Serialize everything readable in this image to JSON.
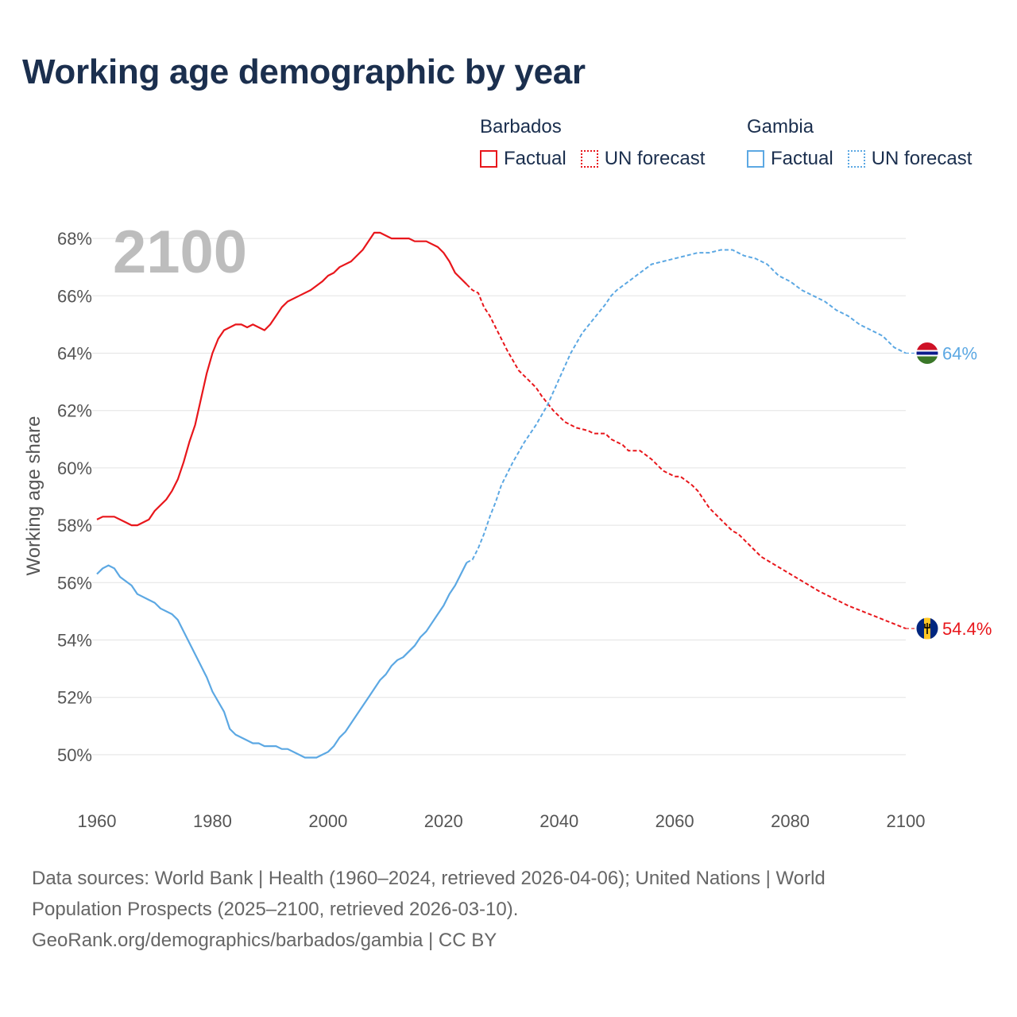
{
  "header": {
    "title": "Working age demographic by year"
  },
  "legend": {
    "groups": [
      {
        "name": "Barbados",
        "factual_label": "Factual",
        "forecast_label": "UN forecast",
        "color": "#e8161b"
      },
      {
        "name": "Gambia",
        "factual_label": "Factual",
        "forecast_label": "UN forecast",
        "color": "#5ca8e3"
      }
    ]
  },
  "footer": {
    "line1": "Data sources: World Bank | Health (1960–2024, retrieved 2026-04-06); United Nations | World",
    "line2": "Population Prospects (2025–2100, retrieved 2026-03-10).",
    "line3": "GeoRank.org/demographics/barbados/gambia | CC BY"
  },
  "chart_data": {
    "type": "line",
    "title": "Working age demographic by year",
    "year_watermark": "2100",
    "ylabel": "Working age share",
    "xlabel": "",
    "xlim": [
      1960,
      2100
    ],
    "ylim": [
      49,
      69
    ],
    "x_ticks": [
      1960,
      1980,
      2000,
      2020,
      2040,
      2060,
      2080,
      2100
    ],
    "y_ticks": [
      50,
      52,
      54,
      56,
      58,
      60,
      62,
      64,
      66,
      68
    ],
    "y_tick_labels": [
      "50%",
      "52%",
      "54%",
      "56%",
      "58%",
      "60%",
      "62%",
      "64%",
      "66%",
      "68%"
    ],
    "factual_range": [
      1960,
      2024
    ],
    "forecast_range": [
      2024,
      2100
    ],
    "series": [
      {
        "name": "Barbados",
        "color": "#e8161b",
        "end_label": "54.4%",
        "flag": "barbados-flag",
        "points": [
          [
            1960,
            58.2
          ],
          [
            1961,
            58.3
          ],
          [
            1963,
            58.3
          ],
          [
            1965,
            58.1
          ],
          [
            1966,
            58.0
          ],
          [
            1967,
            58.0
          ],
          [
            1969,
            58.2
          ],
          [
            1970,
            58.5
          ],
          [
            1972,
            58.9
          ],
          [
            1973,
            59.2
          ],
          [
            1974,
            59.6
          ],
          [
            1975,
            60.2
          ],
          [
            1976,
            60.9
          ],
          [
            1977,
            61.5
          ],
          [
            1978,
            62.4
          ],
          [
            1979,
            63.3
          ],
          [
            1980,
            64.0
          ],
          [
            1981,
            64.5
          ],
          [
            1982,
            64.8
          ],
          [
            1984,
            65.0
          ],
          [
            1985,
            65.0
          ],
          [
            1986,
            64.9
          ],
          [
            1987,
            65.0
          ],
          [
            1988,
            64.9
          ],
          [
            1989,
            64.8
          ],
          [
            1990,
            65.0
          ],
          [
            1991,
            65.3
          ],
          [
            1992,
            65.6
          ],
          [
            1993,
            65.8
          ],
          [
            1995,
            66.0
          ],
          [
            1997,
            66.2
          ],
          [
            1999,
            66.5
          ],
          [
            2000,
            66.7
          ],
          [
            2001,
            66.8
          ],
          [
            2002,
            67.0
          ],
          [
            2004,
            67.2
          ],
          [
            2006,
            67.6
          ],
          [
            2008,
            68.2
          ],
          [
            2009,
            68.2
          ],
          [
            2011,
            68.0
          ],
          [
            2014,
            68.0
          ],
          [
            2015,
            67.9
          ],
          [
            2017,
            67.9
          ],
          [
            2019,
            67.7
          ],
          [
            2020,
            67.5
          ],
          [
            2021,
            67.2
          ],
          [
            2022,
            66.8
          ],
          [
            2023,
            66.6
          ],
          [
            2024,
            66.4
          ],
          [
            2025,
            66.2
          ],
          [
            2026,
            66.1
          ],
          [
            2027,
            65.6
          ],
          [
            2028,
            65.3
          ],
          [
            2029,
            64.9
          ],
          [
            2030,
            64.5
          ],
          [
            2031,
            64.1
          ],
          [
            2033,
            63.4
          ],
          [
            2035,
            63.0
          ],
          [
            2036,
            62.8
          ],
          [
            2037,
            62.5
          ],
          [
            2039,
            62.0
          ],
          [
            2041,
            61.6
          ],
          [
            2043,
            61.4
          ],
          [
            2045,
            61.3
          ],
          [
            2046,
            61.2
          ],
          [
            2048,
            61.2
          ],
          [
            2049,
            61.0
          ],
          [
            2051,
            60.8
          ],
          [
            2052,
            60.6
          ],
          [
            2054,
            60.6
          ],
          [
            2056,
            60.3
          ],
          [
            2058,
            59.9
          ],
          [
            2060,
            59.7
          ],
          [
            2061,
            59.7
          ],
          [
            2063,
            59.4
          ],
          [
            2064,
            59.2
          ],
          [
            2065,
            58.9
          ],
          [
            2066,
            58.6
          ],
          [
            2068,
            58.2
          ],
          [
            2070,
            57.8
          ],
          [
            2071,
            57.7
          ],
          [
            2072,
            57.5
          ],
          [
            2074,
            57.1
          ],
          [
            2075,
            56.9
          ],
          [
            2080,
            56.3
          ],
          [
            2085,
            55.7
          ],
          [
            2090,
            55.2
          ],
          [
            2095,
            54.8
          ],
          [
            2100,
            54.4
          ]
        ]
      },
      {
        "name": "Gambia",
        "color": "#5ca8e3",
        "end_label": "64%",
        "flag": "gambia-flag",
        "points": [
          [
            1960,
            56.3
          ],
          [
            1961,
            56.5
          ],
          [
            1962,
            56.6
          ],
          [
            1963,
            56.5
          ],
          [
            1964,
            56.2
          ],
          [
            1966,
            55.9
          ],
          [
            1967,
            55.6
          ],
          [
            1969,
            55.4
          ],
          [
            1970,
            55.3
          ],
          [
            1971,
            55.1
          ],
          [
            1973,
            54.9
          ],
          [
            1974,
            54.7
          ],
          [
            1975,
            54.3
          ],
          [
            1977,
            53.5
          ],
          [
            1979,
            52.7
          ],
          [
            1980,
            52.2
          ],
          [
            1982,
            51.5
          ],
          [
            1983,
            50.9
          ],
          [
            1984,
            50.7
          ],
          [
            1986,
            50.5
          ],
          [
            1987,
            50.4
          ],
          [
            1988,
            50.4
          ],
          [
            1989,
            50.3
          ],
          [
            1991,
            50.3
          ],
          [
            1992,
            50.2
          ],
          [
            1993,
            50.2
          ],
          [
            1995,
            50.0
          ],
          [
            1996,
            49.9
          ],
          [
            1998,
            49.9
          ],
          [
            1999,
            50.0
          ],
          [
            2000,
            50.1
          ],
          [
            2001,
            50.3
          ],
          [
            2002,
            50.6
          ],
          [
            2003,
            50.8
          ],
          [
            2005,
            51.4
          ],
          [
            2007,
            52.0
          ],
          [
            2009,
            52.6
          ],
          [
            2010,
            52.8
          ],
          [
            2011,
            53.1
          ],
          [
            2012,
            53.3
          ],
          [
            2013,
            53.4
          ],
          [
            2015,
            53.8
          ],
          [
            2016,
            54.1
          ],
          [
            2017,
            54.3
          ],
          [
            2019,
            54.9
          ],
          [
            2020,
            55.2
          ],
          [
            2021,
            55.6
          ],
          [
            2022,
            55.9
          ],
          [
            2023,
            56.3
          ],
          [
            2024,
            56.7
          ],
          [
            2025,
            56.8
          ],
          [
            2026,
            57.2
          ],
          [
            2027,
            57.7
          ],
          [
            2028,
            58.3
          ],
          [
            2029,
            58.8
          ],
          [
            2030,
            59.4
          ],
          [
            2032,
            60.2
          ],
          [
            2034,
            60.9
          ],
          [
            2036,
            61.5
          ],
          [
            2038,
            62.2
          ],
          [
            2040,
            63.1
          ],
          [
            2042,
            64.0
          ],
          [
            2044,
            64.7
          ],
          [
            2046,
            65.2
          ],
          [
            2048,
            65.7
          ],
          [
            2049,
            66.0
          ],
          [
            2050,
            66.2
          ],
          [
            2052,
            66.5
          ],
          [
            2054,
            66.8
          ],
          [
            2056,
            67.1
          ],
          [
            2058,
            67.2
          ],
          [
            2060,
            67.3
          ],
          [
            2062,
            67.4
          ],
          [
            2064,
            67.5
          ],
          [
            2066,
            67.5
          ],
          [
            2068,
            67.6
          ],
          [
            2070,
            67.6
          ],
          [
            2072,
            67.4
          ],
          [
            2074,
            67.3
          ],
          [
            2076,
            67.1
          ],
          [
            2078,
            66.7
          ],
          [
            2080,
            66.5
          ],
          [
            2082,
            66.2
          ],
          [
            2084,
            66.0
          ],
          [
            2086,
            65.8
          ],
          [
            2088,
            65.5
          ],
          [
            2090,
            65.3
          ],
          [
            2092,
            65.0
          ],
          [
            2094,
            64.8
          ],
          [
            2096,
            64.6
          ],
          [
            2098,
            64.2
          ],
          [
            2100,
            64.0
          ]
        ]
      }
    ]
  }
}
